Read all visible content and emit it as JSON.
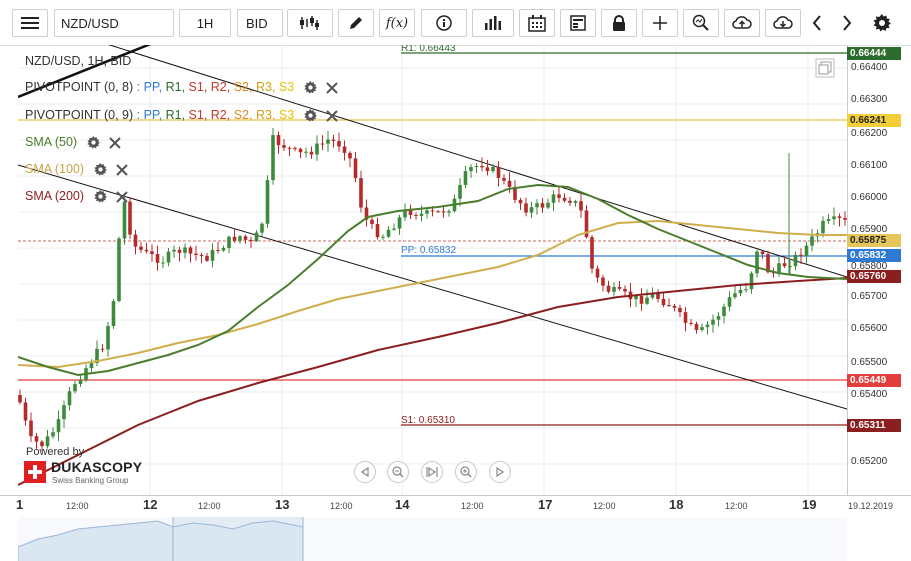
{
  "toolbar": {
    "menu_icon": "hamburger-icon",
    "symbol": "NZD/USD",
    "timeframe": "1H",
    "price_type": "BID"
  },
  "legend": {
    "header": "NZD/USD, 1H, BID",
    "pivot1": {
      "label": "PIVOTPOINT (0, 8)",
      "pp": "PP,",
      "r1": "R1,",
      "s1": "S1,",
      "r2": "R2,",
      "s2": "S2,",
      "r3": "R3,",
      "s3": "S3"
    },
    "pivot2": {
      "label": "PIVOTPOINT (0, 9)",
      "pp": "PP,",
      "r1": "R1,",
      "s1": "S1,",
      "r2": "R2,",
      "s2": "S2,",
      "r3": "R3,",
      "s3": "S3"
    },
    "sma50": "SMA (50)",
    "sma100": "SMA (100)",
    "sma200": "SMA (200)",
    "colors": {
      "pp": "#2f7bd3",
      "r1": "#2c6b2c",
      "s1": "#c0392b",
      "r2": "#c0392b",
      "s2": "#e08a1e",
      "r3": "#d4a017",
      "s3": "#e6c200",
      "sma50": "#4a7d2c",
      "sma100": "#d1ae4c",
      "sma200": "#8b1e1e"
    }
  },
  "chart_labels": {
    "r1": "R1: 0.66443",
    "pp": "PP: 0.65832",
    "s1": "S1: 0.65310"
  },
  "price_axis": {
    "ticks": [
      "0.66400",
      "0.66300",
      "0.66200",
      "0.66100",
      "0.66000",
      "0.65900",
      "0.65800",
      "0.65700",
      "0.65600",
      "0.65500",
      "0.65400",
      "0.65200"
    ],
    "tags": {
      "r1": "0.66444",
      "yellow": "0.66241",
      "sma100": "0.65875",
      "pp": "0.65832",
      "sma200": "0.65760",
      "red": "0.65449",
      "s1": "0.65311"
    }
  },
  "time_axis": {
    "labels": [
      "1",
      "12:00",
      "12",
      "12:00",
      "13",
      "12:00",
      "14",
      "12:00",
      "17",
      "12:00",
      "18",
      "12:00",
      "19",
      "19.12.2019"
    ]
  },
  "branding": {
    "powered_by": "Powered by",
    "name": "DUKASCOPY",
    "tagline": "Swiss Banking Group"
  }
}
